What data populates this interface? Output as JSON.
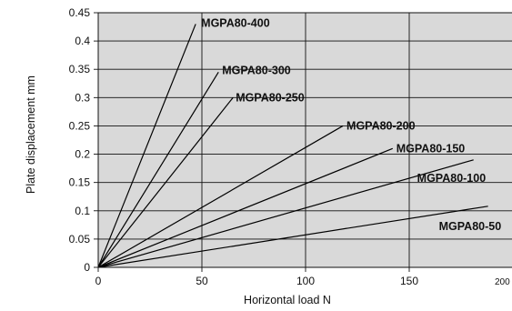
{
  "chart_data": {
    "type": "line",
    "xlabel": "Horizontal load  N",
    "ylabel": "Plate displacement  mm",
    "xlim": [
      0,
      200
    ],
    "ylim": [
      0,
      0.45
    ],
    "x_ticks": [
      "0",
      "50",
      "100",
      "150",
      "200"
    ],
    "y_ticks": [
      "0",
      "0.05",
      "0.1",
      "0.15",
      "0.2",
      "0.25",
      "0.3",
      "0.35",
      "0.4",
      "0.45"
    ],
    "grid": true,
    "background_color": "#d9d9d9",
    "series": [
      {
        "name": "MGPA80-400",
        "x": [
          0,
          47
        ],
        "y": [
          0,
          0.43
        ]
      },
      {
        "name": "MGPA80-300",
        "x": [
          0,
          58
        ],
        "y": [
          0,
          0.345
        ]
      },
      {
        "name": "MGPA80-250",
        "x": [
          0,
          65
        ],
        "y": [
          0,
          0.3
        ]
      },
      {
        "name": "MGPA80-200",
        "x": [
          0,
          118
        ],
        "y": [
          0,
          0.25
        ]
      },
      {
        "name": "MGPA80-150",
        "x": [
          0,
          142
        ],
        "y": [
          0,
          0.21
        ]
      },
      {
        "name": "MGPA80-100",
        "x": [
          0,
          181
        ],
        "y": [
          0,
          0.19
        ]
      },
      {
        "name": "MGPA80-50",
        "x": [
          0,
          188
        ],
        "y": [
          0,
          0.108
        ]
      }
    ]
  }
}
